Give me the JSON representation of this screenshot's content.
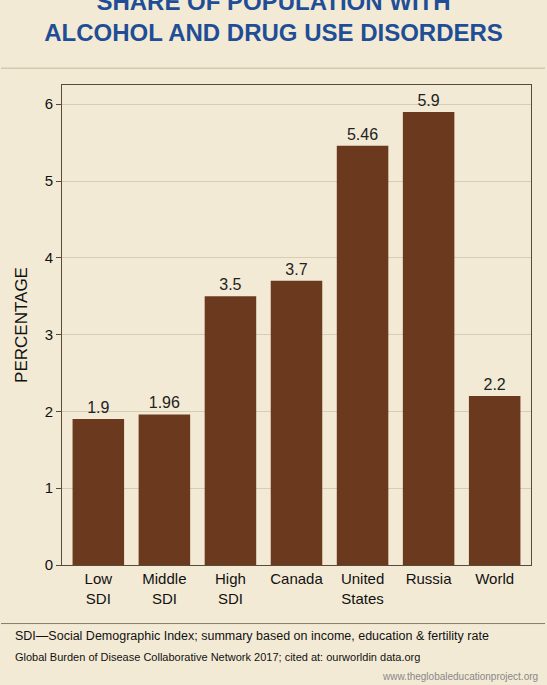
{
  "chart_data": {
    "type": "bar",
    "title": "SHARE OF POPULATION WITH\nALCOHOL AND DRUG USE DISORDERS",
    "y_label": "PERCENTAGE",
    "categories": [
      "Low\nSDI",
      "Middle\nSDI",
      "High\nSDI",
      "Canada",
      "United\nStates",
      "Russia",
      "World"
    ],
    "values": [
      1.9,
      1.96,
      3.5,
      3.7,
      5.46,
      5.9,
      2.2
    ],
    "color": "#6b3a1e",
    "ylim": [
      0,
      6.25
    ],
    "yticks": [
      0,
      1,
      2,
      3,
      4,
      5,
      6
    ],
    "grid": true,
    "data_labels": true,
    "annotations": [
      "SDI—Social Demographic Index; summary based on income, education & fertility rate",
      "Global Burden of Disease Collaborative Network 2017; cited at: ourworldin data.org",
      "www.theglobaleducationproject.org"
    ]
  }
}
